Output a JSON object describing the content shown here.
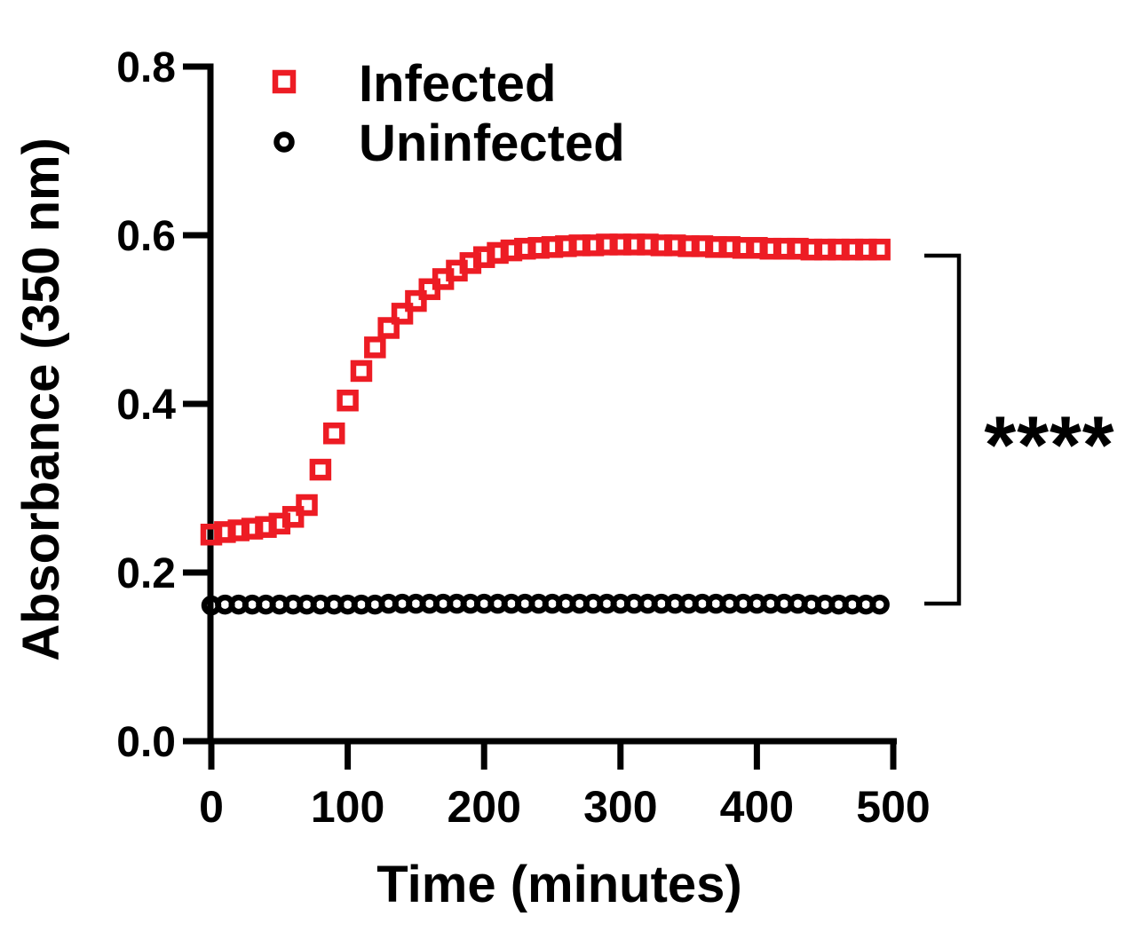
{
  "figure": {
    "background": "#ffffff"
  },
  "chart_data": {
    "type": "scatter",
    "title": "",
    "xlabel": "Time (minutes)",
    "ylabel": "Absorbance (350 nm)",
    "xlim": [
      0,
      500
    ],
    "ylim": [
      0.0,
      0.8
    ],
    "grid": false,
    "legend_position": "inside-top-left",
    "x_tick_labels": [
      "0",
      "100",
      "200",
      "300",
      "400",
      "500"
    ],
    "y_tick_labels": [
      "0.0",
      "0.2",
      "0.4",
      "0.6",
      "0.8"
    ],
    "x": [
      0,
      10,
      20,
      30,
      40,
      50,
      60,
      70,
      80,
      90,
      100,
      110,
      120,
      130,
      140,
      150,
      160,
      170,
      180,
      190,
      200,
      210,
      220,
      230,
      240,
      250,
      260,
      270,
      280,
      290,
      300,
      310,
      320,
      330,
      340,
      350,
      360,
      370,
      380,
      390,
      400,
      410,
      420,
      430,
      440,
      450,
      460,
      470,
      480,
      490
    ],
    "series": [
      {
        "name": "Infected",
        "marker": "open-square",
        "color": "#ED1C24",
        "values": [
          0.245,
          0.248,
          0.25,
          0.252,
          0.254,
          0.258,
          0.266,
          0.28,
          0.322,
          0.365,
          0.404,
          0.439,
          0.467,
          0.49,
          0.507,
          0.522,
          0.536,
          0.548,
          0.558,
          0.567,
          0.574,
          0.579,
          0.582,
          0.584,
          0.585,
          0.586,
          0.587,
          0.588,
          0.588,
          0.589,
          0.589,
          0.589,
          0.589,
          0.588,
          0.588,
          0.587,
          0.587,
          0.586,
          0.586,
          0.585,
          0.585,
          0.584,
          0.584,
          0.584,
          0.583,
          0.583,
          0.583,
          0.583,
          0.583,
          0.583
        ]
      },
      {
        "name": "Uninfected",
        "marker": "open-circle",
        "color": "#000000",
        "values": [
          0.161,
          0.162,
          0.162,
          0.162,
          0.162,
          0.162,
          0.162,
          0.162,
          0.162,
          0.162,
          0.162,
          0.162,
          0.162,
          0.163,
          0.163,
          0.163,
          0.163,
          0.163,
          0.163,
          0.163,
          0.163,
          0.163,
          0.163,
          0.163,
          0.163,
          0.163,
          0.163,
          0.163,
          0.163,
          0.163,
          0.163,
          0.163,
          0.163,
          0.163,
          0.163,
          0.163,
          0.163,
          0.163,
          0.163,
          0.163,
          0.163,
          0.163,
          0.163,
          0.163,
          0.162,
          0.162,
          0.162,
          0.162,
          0.162,
          0.162
        ]
      }
    ],
    "annotation": {
      "label": "****"
    },
    "colors": {
      "infected": "#ED1C24",
      "uninfected": "#000000",
      "axis": "#000000"
    }
  }
}
